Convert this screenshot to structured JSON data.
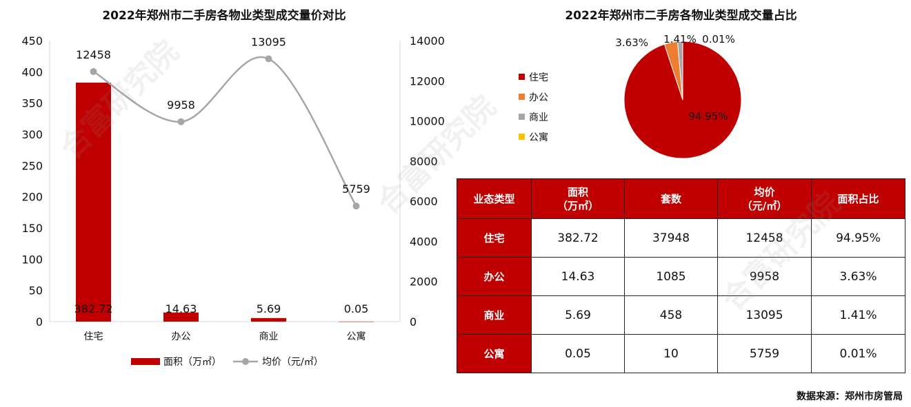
{
  "left_chart": {
    "title": "2022年郑州市二手房各物业类型成交量价对比",
    "legend": {
      "bar": "面积（万㎡）",
      "line": "均价（元/㎡）"
    }
  },
  "right_chart": {
    "title": "2022年郑州市二手房各物业类型成交量占比"
  },
  "table": {
    "headers": [
      "业态类型",
      "面积（万㎡）",
      "套数",
      "均价（元/㎡）",
      "面积占比"
    ],
    "rows": [
      [
        "住宅",
        "382.72",
        "37948",
        "12458",
        "94.95%"
      ],
      [
        "办公",
        "14.63",
        "1085",
        "9958",
        "3.63%"
      ],
      [
        "商业",
        "5.69",
        "458",
        "13095",
        "1.41%"
      ],
      [
        "公寓",
        "0.05",
        "10",
        "5759",
        "0.01%"
      ]
    ]
  },
  "source": "数据来源：郑州市房管局",
  "watermark": "合富研究院",
  "colors": {
    "red": "#c00000",
    "orange": "#ed7d31",
    "gray": "#a5a5a5",
    "yellow": "#ffc000",
    "line": "#a6a6a6"
  },
  "chart_data": [
    {
      "type": "bar",
      "title": "2022年郑州市二手房各物业类型成交量价对比",
      "categories": [
        "住宅",
        "办公",
        "商业",
        "公寓"
      ],
      "series": [
        {
          "name": "面积（万㎡）",
          "type": "bar",
          "axis": "left",
          "values": [
            382.72,
            14.63,
            5.69,
            0.05
          ]
        },
        {
          "name": "均价（元/㎡）",
          "type": "line",
          "axis": "right",
          "values": [
            12458,
            9958,
            13095,
            5759
          ]
        }
      ],
      "ylim": [
        0,
        450
      ],
      "y2lim": [
        0,
        14000
      ],
      "yticks": [
        0,
        50,
        100,
        150,
        200,
        250,
        300,
        350,
        400,
        450
      ],
      "y2ticks": [
        0,
        2000,
        4000,
        6000,
        8000,
        10000,
        12000,
        14000
      ],
      "legend": "bottom"
    },
    {
      "type": "pie",
      "title": "2022年郑州市二手房各物业类型成交量占比",
      "labels": [
        "住宅",
        "办公",
        "商业",
        "公寓"
      ],
      "values": [
        94.95,
        3.63,
        1.41,
        0.01
      ],
      "value_labels": [
        "94.95%",
        "3.63%",
        "1.41%",
        "0.01%"
      ],
      "colors": [
        "#c00000",
        "#ed7d31",
        "#a5a5a5",
        "#ffc000"
      ],
      "legend": "left"
    }
  ]
}
